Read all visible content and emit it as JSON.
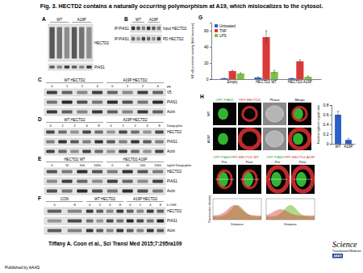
{
  "title": "Fig. 3. HECTD2 contains a naturally occurring polymorphism at A19, which mislocalizes to the cytosol.",
  "citation": "Tiffany A. Coon et al., Sci Transl Med 2015;7:295ra109",
  "publisher": "Published by AAAS",
  "logo": {
    "line1": "Science",
    "line2": "Translational Medicine",
    "org": "AAAS"
  },
  "blots": [
    {
      "label": "A",
      "groups": [
        {
          "name": "WT"
        },
        {
          "name": "A19P"
        }
      ],
      "rows": [
        {
          "name": "HECTD2"
        },
        {
          "name": "PIAS1"
        }
      ]
    },
    {
      "label": "B",
      "groups": [
        {
          "name": "WT"
        },
        {
          "name": "A19P"
        }
      ],
      "rows": [
        {
          "prefix": "IP:PIAS1",
          "name": "Input HECTD2"
        },
        {
          "prefix": "IP:PIAS1",
          "name": "PD HECTD2"
        }
      ]
    },
    {
      "label": "C",
      "groups": [
        {
          "name": "WT HECTD2",
          "lanes": [
            0,
            1,
            2,
            4
          ]
        },
        {
          "name": "A19P HECTD2",
          "lanes": [
            0,
            1,
            2,
            4
          ]
        }
      ],
      "unit": "μg",
      "rows": [
        {
          "name": "V5"
        },
        {
          "name": "PIAS1"
        },
        {
          "name": "Actin"
        }
      ]
    },
    {
      "label": "D",
      "groups": [
        {
          "name": "WT HECTD2",
          "lanes": [
            0,
            1,
            2,
            4,
            8
          ]
        },
        {
          "name": "A19P HECTD2",
          "lanes": [
            0,
            1,
            2,
            4,
            8
          ]
        }
      ],
      "unit": "Doxycyline",
      "rows": [
        {
          "name": "HECTD2"
        },
        {
          "name": "PIAS1"
        },
        {
          "name": "Actin"
        }
      ]
    },
    {
      "label": "E",
      "groups": [
        {
          "name": "HECTD2 WT",
          "lanes": [
            0,
            10,
            100,
            1000
          ]
        },
        {
          "name": "HECTD2 A19P",
          "lanes": [
            0,
            10,
            100,
            1000
          ]
        }
      ],
      "unit": "ng/ml Doxycyline",
      "rows": [
        {
          "name": "HECTD2"
        },
        {
          "name": "PIAS1"
        },
        {
          "name": "Actin"
        }
      ]
    },
    {
      "label": "F",
      "groups": [
        {
          "name": "CON",
          "lanes": [
            0,
            8
          ]
        },
        {
          "name": "WT HECTD2",
          "lanes": [
            0,
            2,
            4,
            8
          ]
        },
        {
          "name": "A19P HECTD2",
          "lanes": [
            0,
            2,
            4,
            8
          ]
        }
      ],
      "unit": "h CHX",
      "rows": [
        {
          "name": "HECTD2"
        },
        {
          "name": "PIAS1"
        },
        {
          "name": "Actin"
        }
      ]
    }
  ],
  "chart_panel_labels": [
    "G",
    "H"
  ],
  "chart_data": [
    {
      "type": "bar",
      "y_label": "NF-κB promoter activity (fold-increase)",
      "categories": [
        "Empty",
        "HECTD2 WT",
        "HECTD2 A19P"
      ],
      "series": [
        {
          "name": "Untreated",
          "color": "#2b5fc7",
          "values": [
            1,
            2,
            1
          ],
          "errors": [
            0.5,
            1,
            0.5
          ]
        },
        {
          "name": "TNF",
          "color": "#d93a3a",
          "values": [
            10,
            52,
            22
          ],
          "errors": [
            1,
            8,
            2
          ]
        },
        {
          "name": "LPS",
          "color": "#7ac143",
          "values": [
            7,
            9,
            3
          ],
          "errors": [
            1,
            2,
            1
          ]
        }
      ],
      "ylim": [
        0,
        70
      ],
      "yticks": [
        0,
        20,
        40,
        60
      ],
      "legend": "upper left"
    },
    {
      "type": "bar",
      "y_label": "Nuclear/cytosol signal ratio",
      "categories": [
        "WT",
        "A19P"
      ],
      "values": [
        0.6,
        0.08
      ],
      "errors": [
        0.07,
        0.03
      ],
      "color": "#2b5fc7",
      "ylim": [
        0,
        0.8
      ],
      "yticks": [
        0,
        0.2,
        0.4,
        0.6,
        0.8
      ]
    }
  ],
  "imaging": {
    "columns": [
      "CFP-PIAS1",
      "YFP-HECTD2",
      "Phase",
      "Merge"
    ],
    "rows": [
      "WT",
      "A19P"
    ],
    "bleach": [
      {
        "channels": [
          "CFP-PIAS1",
          "YFP-HECTD2 WT"
        ],
        "stages": [
          "Pre",
          "Post"
        ],
        "x_label": "Distance"
      },
      {
        "channels": [
          "CFP-PIAS1",
          "YFP-HECTD2 A19P"
        ],
        "stages": [
          "Pre",
          "Post"
        ],
        "x_label": "Distance"
      }
    ],
    "y_label": "Fluorescence intensity"
  }
}
